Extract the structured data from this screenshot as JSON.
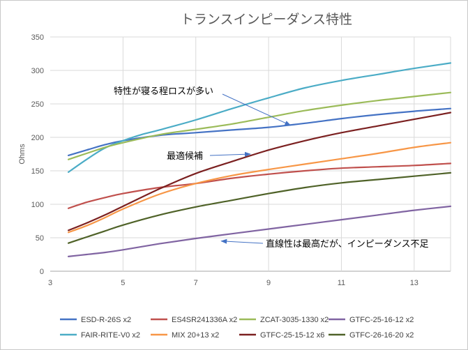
{
  "chart_data": {
    "type": "line",
    "title": "トランスインピーダンス特性",
    "xlabel": "",
    "ylabel": "Ohms",
    "xlim": [
      3,
      14
    ],
    "ylim": [
      0,
      350
    ],
    "xticks": [
      3,
      5,
      7,
      9,
      11,
      13
    ],
    "yticks": [
      0,
      50,
      100,
      150,
      200,
      250,
      300,
      350
    ],
    "grid": true,
    "legend_position": "bottom",
    "series": [
      {
        "name": "ESD-R-26S x2",
        "color": "#4472c4",
        "points": [
          [
            3.5,
            173
          ],
          [
            4,
            181
          ],
          [
            4.5,
            189
          ],
          [
            5,
            195
          ],
          [
            6,
            203
          ],
          [
            7,
            207
          ],
          [
            8,
            211
          ],
          [
            9,
            215
          ],
          [
            10,
            221
          ],
          [
            11,
            228
          ],
          [
            12,
            234
          ],
          [
            13,
            239
          ],
          [
            14,
            243
          ]
        ]
      },
      {
        "name": "FAIR-RITE-V0 x2",
        "color": "#4bacc6",
        "points": [
          [
            3.5,
            148
          ],
          [
            4,
            167
          ],
          [
            4.5,
            184
          ],
          [
            5,
            195
          ],
          [
            5.5,
            204
          ],
          [
            6,
            211
          ],
          [
            7,
            226
          ],
          [
            8,
            243
          ],
          [
            9,
            259
          ],
          [
            10,
            274
          ],
          [
            11,
            285
          ],
          [
            12,
            294
          ],
          [
            13,
            303
          ],
          [
            14,
            311
          ]
        ]
      },
      {
        "name": "ES4SR241336A x2",
        "color": "#c0504d",
        "points": [
          [
            3.5,
            94
          ],
          [
            4,
            103
          ],
          [
            4.5,
            110
          ],
          [
            5,
            116
          ],
          [
            6,
            125
          ],
          [
            7,
            131
          ],
          [
            8,
            139
          ],
          [
            9,
            145
          ],
          [
            10,
            150
          ],
          [
            11,
            154
          ],
          [
            12,
            156
          ],
          [
            13,
            158
          ],
          [
            14,
            161
          ]
        ]
      },
      {
        "name": "MIX 20+13 x2",
        "color": "#f79646",
        "points": [
          [
            3.5,
            58
          ],
          [
            4,
            68
          ],
          [
            4.5,
            80
          ],
          [
            5,
            93
          ],
          [
            6,
            115
          ],
          [
            7,
            131
          ],
          [
            8,
            143
          ],
          [
            9,
            152
          ],
          [
            10,
            160
          ],
          [
            11,
            168
          ],
          [
            12,
            176
          ],
          [
            13,
            185
          ],
          [
            14,
            192
          ]
        ]
      },
      {
        "name": "ZCAT-3035-1330 x2",
        "color": "#9bbb59",
        "points": [
          [
            3.5,
            167
          ],
          [
            4,
            176
          ],
          [
            4.5,
            185
          ],
          [
            5,
            192
          ],
          [
            6,
            204
          ],
          [
            7,
            212
          ],
          [
            8,
            220
          ],
          [
            9,
            230
          ],
          [
            10,
            240
          ],
          [
            11,
            248
          ],
          [
            12,
            255
          ],
          [
            13,
            261
          ],
          [
            14,
            267
          ]
        ]
      },
      {
        "name": "GTFC-25-15-12 x6",
        "color": "#7b2020",
        "points": [
          [
            3.5,
            61
          ],
          [
            4,
            72
          ],
          [
            4.5,
            84
          ],
          [
            5,
            97
          ],
          [
            6,
            123
          ],
          [
            7,
            146
          ],
          [
            8,
            164
          ],
          [
            9,
            181
          ],
          [
            10,
            195
          ],
          [
            11,
            207
          ],
          [
            12,
            217
          ],
          [
            13,
            227
          ],
          [
            14,
            237
          ]
        ]
      },
      {
        "name": "GTFC-25-16-12 x2",
        "color": "#8064a2",
        "points": [
          [
            3.5,
            22
          ],
          [
            4,
            25
          ],
          [
            4.5,
            28
          ],
          [
            5,
            32
          ],
          [
            6,
            41
          ],
          [
            7,
            49
          ],
          [
            8,
            56
          ],
          [
            9,
            63
          ],
          [
            10,
            70
          ],
          [
            11,
            77
          ],
          [
            12,
            84
          ],
          [
            13,
            91
          ],
          [
            14,
            97
          ]
        ]
      },
      {
        "name": "GTFC-26-16-20 x2",
        "color": "#4f6228",
        "points": [
          [
            3.5,
            42
          ],
          [
            4,
            51
          ],
          [
            4.5,
            60
          ],
          [
            5,
            69
          ],
          [
            6,
            84
          ],
          [
            7,
            96
          ],
          [
            8,
            106
          ],
          [
            9,
            116
          ],
          [
            10,
            125
          ],
          [
            11,
            132
          ],
          [
            12,
            137
          ],
          [
            13,
            142
          ],
          [
            14,
            147
          ]
        ]
      }
    ],
    "annotations": [
      {
        "text": "特性が寝る程ロスが多い",
        "target": [
          9.6,
          218
        ]
      },
      {
        "text": "最適候補",
        "target": [
          8.5,
          175
        ]
      },
      {
        "text": "直線性は最高だが、インピーダンス不足",
        "target": [
          7.7,
          45
        ]
      }
    ]
  }
}
